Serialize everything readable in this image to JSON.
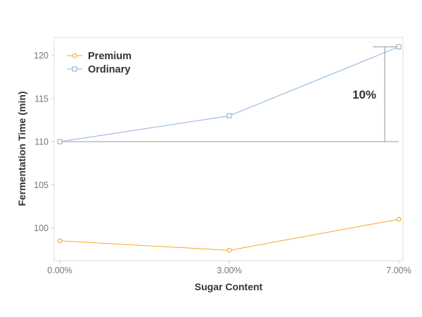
{
  "chart_data": {
    "type": "line",
    "title": "",
    "xlabel": "Sugar Content",
    "ylabel": "Fermentation Time (min)",
    "categories": [
      "0.00%",
      "3.00%",
      "7.00%"
    ],
    "yticks": [
      100,
      105,
      110,
      115,
      120
    ],
    "ylim": [
      96.2,
      122.1
    ],
    "grid": false,
    "legend_position": "top-left",
    "series": [
      {
        "name": "Premium",
        "values": [
          98.5,
          97.4,
          101.0
        ],
        "color": "#f5a623",
        "marker": "circle"
      },
      {
        "name": "Ordinary",
        "values": [
          110.0,
          113.0,
          121.0
        ],
        "color": "#8cb0e0",
        "marker": "square"
      }
    ],
    "annotation": {
      "label": "10%",
      "baseline": 110,
      "from": 110,
      "to": 121,
      "color": "#aaaaaa"
    }
  }
}
